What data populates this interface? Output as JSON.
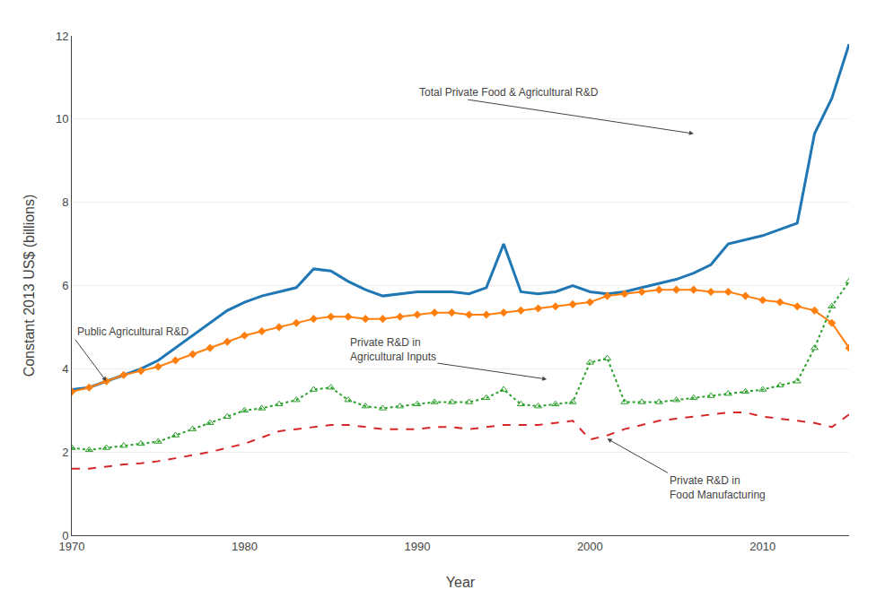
{
  "chart_data": {
    "type": "line",
    "xlabel": "Year",
    "ylabel": "Constant 2013 US$ (billions)",
    "x": [
      1970,
      1971,
      1972,
      1973,
      1974,
      1975,
      1976,
      1977,
      1978,
      1979,
      1980,
      1981,
      1982,
      1983,
      1984,
      1985,
      1986,
      1987,
      1988,
      1989,
      1990,
      1991,
      1992,
      1993,
      1994,
      1995,
      1996,
      1997,
      1998,
      1999,
      2000,
      2001,
      2002,
      2003,
      2004,
      2005,
      2006,
      2007,
      2008,
      2009,
      2010,
      2011,
      2012,
      2013,
      2014,
      2015
    ],
    "series": [
      {
        "line_style": "solid",
        "marker": "none",
        "values": [
          3.5,
          3.55,
          3.7,
          3.85,
          4.0,
          4.2,
          4.5,
          4.8,
          5.1,
          5.4,
          5.6,
          5.75,
          5.85,
          5.95,
          6.4,
          6.35,
          6.1,
          5.9,
          5.75,
          5.8,
          5.85,
          5.85,
          5.85,
          5.8,
          5.95,
          7.0,
          5.85,
          5.8,
          5.85,
          6.0,
          5.85,
          5.8,
          5.85,
          5.95,
          6.05,
          6.15,
          6.3,
          6.5,
          7.0,
          7.1,
          7.2,
          7.35,
          7.5,
          9.65,
          10.5,
          11.8
        ]
      },
      {
        "line_style": "solid",
        "marker": "diamond",
        "values": [
          3.45,
          3.55,
          3.7,
          3.85,
          3.95,
          4.05,
          4.2,
          4.35,
          4.5,
          4.65,
          4.8,
          4.9,
          5.0,
          5.1,
          5.2,
          5.25,
          5.25,
          5.2,
          5.2,
          5.25,
          5.3,
          5.35,
          5.35,
          5.3,
          5.3,
          5.35,
          5.4,
          5.45,
          5.5,
          5.55,
          5.6,
          5.75,
          5.8,
          5.85,
          5.9,
          5.9,
          5.9,
          5.85,
          5.85,
          5.75,
          5.65,
          5.6,
          5.5,
          5.4,
          5.1,
          4.5
        ]
      },
      {
        "line_style": "dotted",
        "marker": "triangle-up-open",
        "values": [
          2.1,
          2.05,
          2.1,
          2.15,
          2.2,
          2.25,
          2.4,
          2.55,
          2.7,
          2.85,
          3.0,
          3.05,
          3.15,
          3.25,
          3.5,
          3.55,
          3.25,
          3.1,
          3.05,
          3.1,
          3.15,
          3.2,
          3.2,
          3.2,
          3.3,
          3.5,
          3.15,
          3.1,
          3.15,
          3.2,
          4.15,
          4.25,
          3.2,
          3.2,
          3.2,
          3.25,
          3.3,
          3.35,
          3.4,
          3.45,
          3.5,
          3.6,
          3.7,
          4.5,
          5.5,
          6.1
        ]
      },
      {
        "line_style": "dashed",
        "marker": "none",
        "values": [
          1.6,
          1.6,
          1.65,
          1.7,
          1.73,
          1.78,
          1.85,
          1.93,
          2.0,
          2.1,
          2.2,
          2.35,
          2.5,
          2.55,
          2.6,
          2.65,
          2.65,
          2.6,
          2.55,
          2.55,
          2.55,
          2.6,
          2.6,
          2.55,
          2.6,
          2.65,
          2.65,
          2.65,
          2.7,
          2.75,
          2.3,
          2.4,
          2.55,
          2.65,
          2.75,
          2.8,
          2.85,
          2.9,
          2.95,
          2.95,
          2.85,
          2.8,
          2.75,
          2.7,
          2.6,
          2.9
        ]
      }
    ],
    "xlim": [
      1970,
      2015
    ],
    "xticks": [
      1970,
      1980,
      1990,
      2000,
      2010
    ],
    "ylim": [
      0,
      12
    ],
    "yticks": [
      0,
      2,
      4,
      6,
      8,
      10,
      12
    ],
    "grid": "y",
    "annotations": [
      {
        "text": "Total Private Food & Agricultural R&D",
        "x": 2006,
        "y": 9.65,
        "xtext": 1990,
        "ytext": 10.65
      },
      {
        "text": "Public Agricultural R&D",
        "x": 1972.0,
        "y": 3.7,
        "xtext": 1970.2,
        "ytext": 4.7
      },
      {
        "text": "Private R&D in\nAgricultural Inputs",
        "x": 1997.5,
        "y": 3.75,
        "xtext": 1986,
        "ytext": 4.45
      },
      {
        "text": "Private R&D in\nFood Manufacturing",
        "x": 2001.0,
        "y": 2.32,
        "xtext": 2004.5,
        "ytext": 1.5
      }
    ]
  }
}
